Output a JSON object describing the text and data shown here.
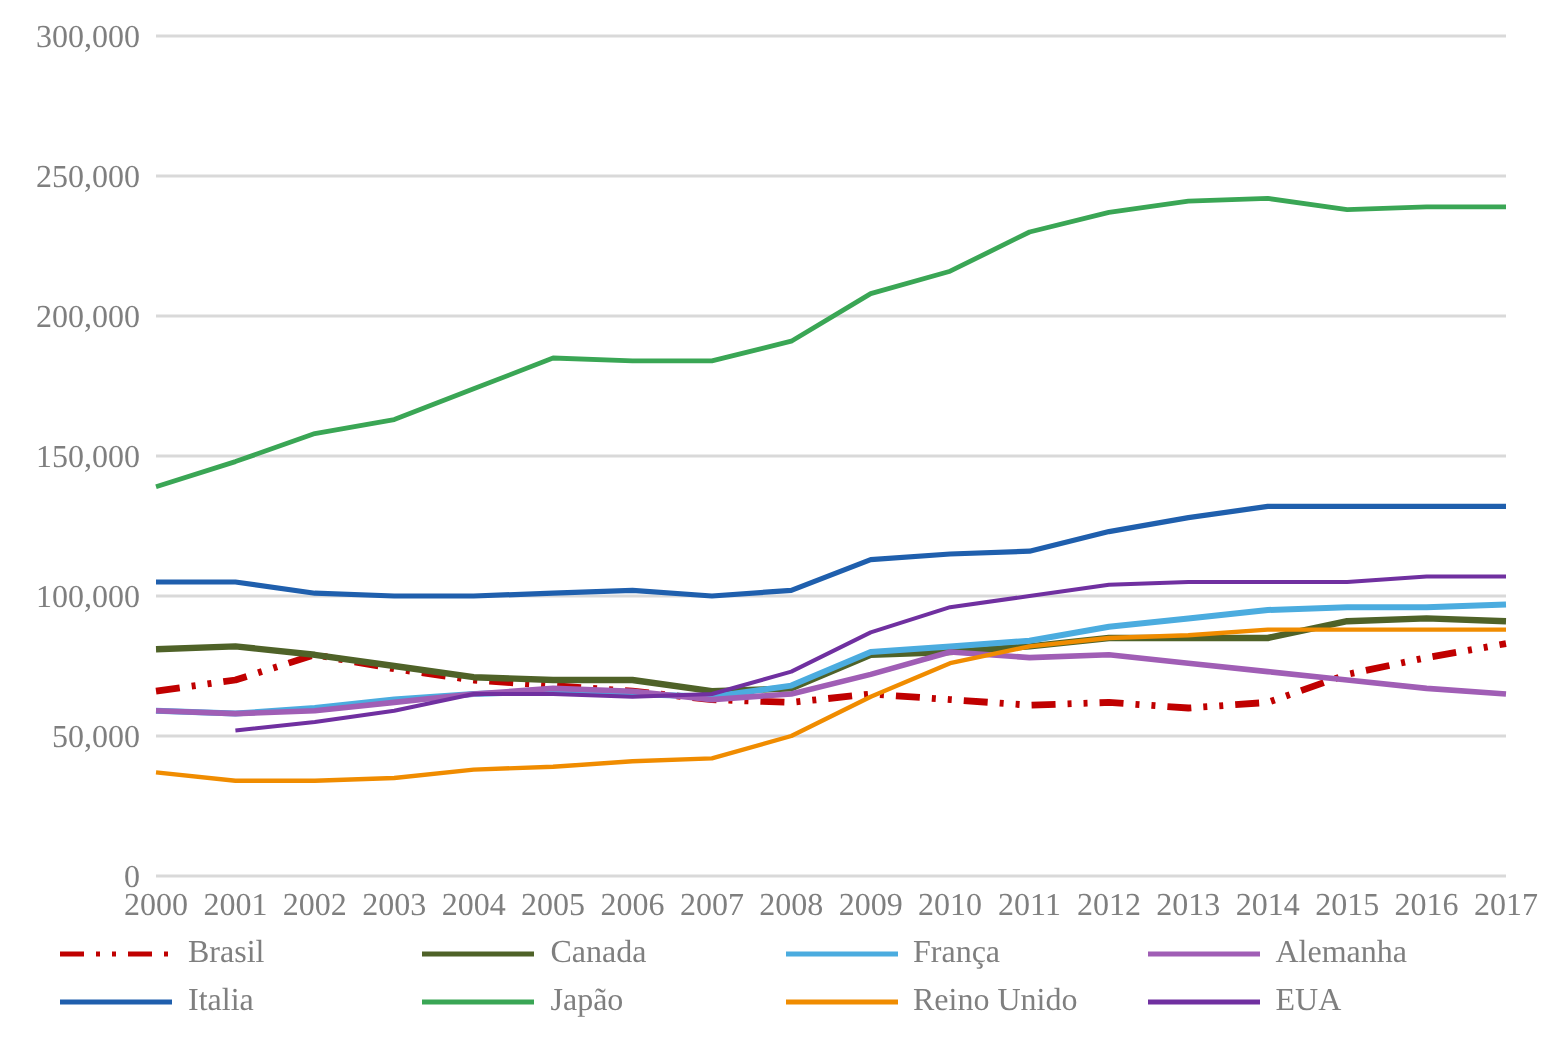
{
  "chart_data": {
    "type": "line",
    "categories": [
      "2000",
      "2001",
      "2002",
      "2003",
      "2004",
      "2005",
      "2006",
      "2007",
      "2008",
      "2009",
      "2010",
      "2011",
      "2012",
      "2013",
      "2014",
      "2015",
      "2016",
      "2017"
    ],
    "series": [
      {
        "name": "Brasil",
        "color": "#c00000",
        "line_style": "dashed",
        "values": [
          66000,
          70000,
          79000,
          74000,
          70000,
          68000,
          66000,
          63000,
          62000,
          65000,
          63000,
          61000,
          62000,
          60000,
          62000,
          72000,
          78000,
          83000
        ]
      },
      {
        "name": "Canada",
        "color": "#4f6228",
        "values": [
          81000,
          82000,
          79000,
          75000,
          71000,
          70000,
          70000,
          66000,
          67000,
          79000,
          80000,
          82000,
          85000,
          85000,
          85000,
          91000,
          92000,
          91000
        ]
      },
      {
        "name": "França",
        "color": "#4bacdf",
        "values": [
          59000,
          58000,
          60000,
          63000,
          65000,
          66000,
          65000,
          64000,
          68000,
          80000,
          82000,
          84000,
          89000,
          92000,
          95000,
          96000,
          96000,
          97000
        ]
      },
      {
        "name": "Alemanha",
        "color": "#a05eb5",
        "values": [
          59000,
          58000,
          59000,
          62000,
          65000,
          67000,
          66000,
          63000,
          65000,
          72000,
          80000,
          78000,
          79000,
          76000,
          73000,
          70000,
          67000,
          65000
        ]
      },
      {
        "name": "Italia",
        "color": "#1f5fad",
        "values": [
          105000,
          105000,
          101000,
          100000,
          100000,
          101000,
          102000,
          100000,
          102000,
          113000,
          115000,
          116000,
          123000,
          128000,
          132000,
          132000,
          132000,
          132000
        ]
      },
      {
        "name": "Japão",
        "color": "#3aa655",
        "values": [
          139000,
          148000,
          158000,
          163000,
          174000,
          185000,
          184000,
          184000,
          191000,
          208000,
          216000,
          230000,
          237000,
          241000,
          242000,
          238000,
          239000,
          239000
        ]
      },
      {
        "name": "Reino Unido",
        "color": "#f08c00",
        "values": [
          37000,
          34000,
          34000,
          35000,
          38000,
          39000,
          41000,
          42000,
          50000,
          64000,
          76000,
          82000,
          85000,
          86000,
          88000,
          88000,
          88000,
          88000
        ]
      },
      {
        "name": "EUA",
        "color": "#7030a0",
        "values": [
          null,
          52000,
          55000,
          59000,
          65000,
          65000,
          64000,
          65000,
          73000,
          87000,
          96000,
          100000,
          104000,
          105000,
          105000,
          105000,
          107000,
          107000
        ]
      }
    ],
    "ylim": [
      0,
      300000
    ],
    "yticks": [
      {
        "value": 0,
        "label": "0"
      },
      {
        "value": 50000,
        "label": "50,000"
      },
      {
        "value": 100000,
        "label": "100,000"
      },
      {
        "value": 150000,
        "label": "150,000"
      },
      {
        "value": 200000,
        "label": "200,000"
      },
      {
        "value": 250000,
        "label": "250,000"
      },
      {
        "value": 300000,
        "label": "300,000"
      }
    ],
    "grid": "y",
    "legend": "bottom",
    "marker": "none"
  }
}
